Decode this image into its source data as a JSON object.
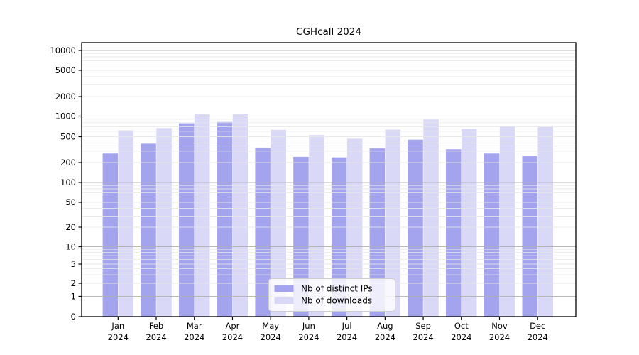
{
  "title": "CGHcall 2024",
  "colors": {
    "ips_bar": "#a3a3ee",
    "downloads_bar": "#d9d9f7",
    "major_grid": "#b0b0b0",
    "minor_grid": "#e7e7e7",
    "spine": "#000000",
    "legend_border": "#cccccc"
  },
  "y_axis": {
    "tick_labels": [
      "10000",
      "5000",
      "2000",
      "1000",
      "500",
      "200",
      "100",
      "50",
      "20",
      "10",
      "5",
      "2",
      "1",
      "0"
    ]
  },
  "legend": {
    "items": [
      {
        "label": "Nb of distinct IPs",
        "color": "#a3a3ee"
      },
      {
        "label": "Nb of downloads",
        "color": "#d9d9f7"
      }
    ]
  },
  "chart_data": {
    "type": "bar",
    "title": "CGHcall 2024",
    "categories": [
      "Jan 2024",
      "Feb 2024",
      "Mar 2024",
      "Apr 2024",
      "May 2024",
      "Jun 2024",
      "Jul 2024",
      "Aug 2024",
      "Sep 2024",
      "Oct 2024",
      "Nov 2024",
      "Dec 2024"
    ],
    "series": [
      {
        "name": "Nb of distinct IPs",
        "color": "#a3a3ee",
        "values": [
          275,
          390,
          785,
          820,
          340,
          245,
          240,
          330,
          450,
          320,
          275,
          250
        ]
      },
      {
        "name": "Nb of downloads",
        "color": "#d9d9f7",
        "values": [
          620,
          670,
          1065,
          1070,
          630,
          530,
          465,
          635,
          890,
          655,
          705,
          690
        ]
      }
    ],
    "xlabel": "",
    "ylabel": "",
    "yscale": "symlog",
    "y_ticks": [
      0,
      1,
      2,
      5,
      10,
      20,
      50,
      100,
      200,
      500,
      1000,
      2000,
      5000,
      10000
    ],
    "ylim": [
      0,
      13000
    ],
    "grid": true,
    "grid_on_top_of_bars": true,
    "legend_position": "lower center"
  }
}
